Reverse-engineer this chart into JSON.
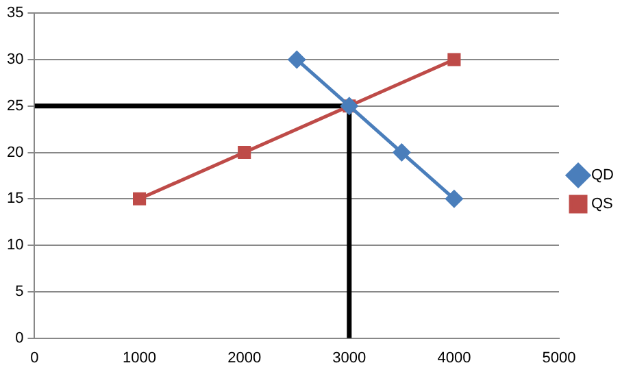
{
  "chart_data": {
    "type": "line",
    "series": [
      {
        "name": "QD",
        "color": "#4a7ebb",
        "marker": "diamond",
        "x": [
          2500,
          3000,
          3500,
          4000
        ],
        "values": [
          30,
          25,
          20,
          15
        ]
      },
      {
        "name": "QS",
        "color": "#be4b48",
        "marker": "square",
        "x": [
          1000,
          2000,
          3000,
          4000
        ],
        "values": [
          15,
          20,
          25,
          30
        ]
      },
      {
        "color": "#000000",
        "marker": "none",
        "x": [
          0,
          3000,
          3000
        ],
        "values": [
          25,
          25,
          0
        ]
      }
    ],
    "xlim": [
      0,
      5000
    ],
    "xticks": [
      0,
      1000,
      2000,
      3000,
      4000,
      5000
    ],
    "ylim": [
      0,
      35
    ],
    "yticks": [
      0,
      5,
      10,
      15,
      20,
      25,
      30,
      35
    ],
    "grid": "y",
    "legend": "right"
  }
}
